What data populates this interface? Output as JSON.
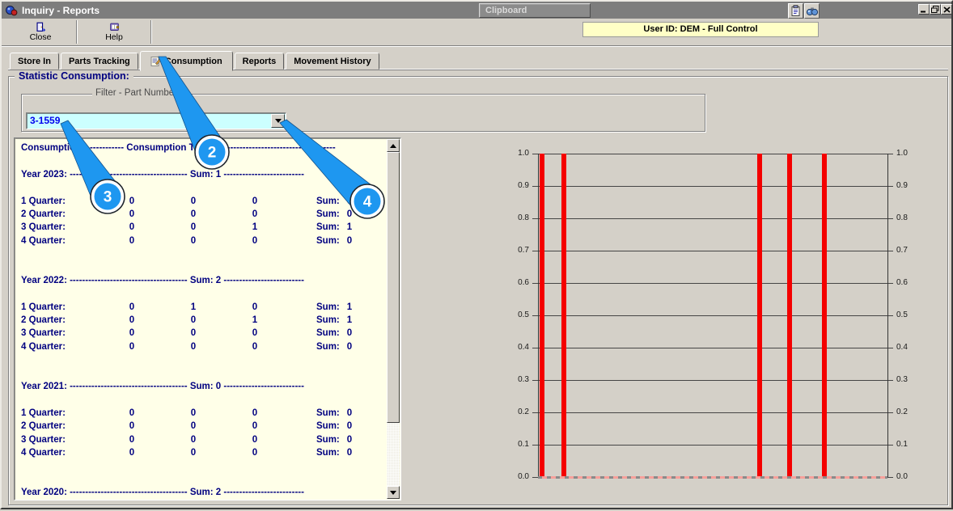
{
  "window": {
    "title": "Inquiry - Reports",
    "clipboard_caption": "Clipboard",
    "user_badge": "User ID: DEM - Full Control"
  },
  "toolbar": {
    "close": "Close",
    "help": "Help"
  },
  "tabs": {
    "items": [
      {
        "label": "Store In",
        "active": false
      },
      {
        "label": "Parts Tracking",
        "active": false
      },
      {
        "label": "Consumption",
        "active": true
      },
      {
        "label": "Reports",
        "active": false
      },
      {
        "label": "Movement History",
        "active": false
      }
    ]
  },
  "group": {
    "title": "Statistic Consumption:"
  },
  "filter": {
    "label": "Filter - Part Number:",
    "value": "3-1559"
  },
  "report": {
    "rows": [
      {
        "type": "text",
        "text": "Consumption: ------------ Consumption Total: 6 ------------------------------------"
      },
      {
        "type": "blank"
      },
      {
        "type": "text",
        "text": "Year 2023: -------------------------------------- Sum: 1 --------------------------"
      },
      {
        "type": "blank"
      },
      {
        "type": "q",
        "label": "1 Quarter:",
        "v1": "0",
        "v2": "0",
        "v3": "0",
        "sl": "Sum:",
        "sum": "0"
      },
      {
        "type": "q",
        "label": "2 Quarter:",
        "v1": "0",
        "v2": "0",
        "v3": "0",
        "sl": "Sum:",
        "sum": "0"
      },
      {
        "type": "q",
        "label": "3 Quarter:",
        "v1": "0",
        "v2": "0",
        "v3": "1",
        "sl": "Sum:",
        "sum": "1"
      },
      {
        "type": "q",
        "label": "4 Quarter:",
        "v1": "0",
        "v2": "0",
        "v3": "0",
        "sl": "Sum:",
        "sum": "0"
      },
      {
        "type": "blank"
      },
      {
        "type": "blank"
      },
      {
        "type": "text",
        "text": "Year 2022: -------------------------------------- Sum: 2 --------------------------"
      },
      {
        "type": "blank"
      },
      {
        "type": "q",
        "label": "1 Quarter:",
        "v1": "0",
        "v2": "1",
        "v3": "0",
        "sl": "Sum:",
        "sum": "1"
      },
      {
        "type": "q",
        "label": "2 Quarter:",
        "v1": "0",
        "v2": "0",
        "v3": "1",
        "sl": "Sum:",
        "sum": "1"
      },
      {
        "type": "q",
        "label": "3 Quarter:",
        "v1": "0",
        "v2": "0",
        "v3": "0",
        "sl": "Sum:",
        "sum": "0"
      },
      {
        "type": "q",
        "label": "4 Quarter:",
        "v1": "0",
        "v2": "0",
        "v3": "0",
        "sl": "Sum:",
        "sum": "0"
      },
      {
        "type": "blank"
      },
      {
        "type": "blank"
      },
      {
        "type": "text",
        "text": "Year 2021: -------------------------------------- Sum: 0 --------------------------"
      },
      {
        "type": "blank"
      },
      {
        "type": "q",
        "label": "1 Quarter:",
        "v1": "0",
        "v2": "0",
        "v3": "0",
        "sl": "Sum:",
        "sum": "0"
      },
      {
        "type": "q",
        "label": "2 Quarter:",
        "v1": "0",
        "v2": "0",
        "v3": "0",
        "sl": "Sum:",
        "sum": "0"
      },
      {
        "type": "q",
        "label": "3 Quarter:",
        "v1": "0",
        "v2": "0",
        "v3": "0",
        "sl": "Sum:",
        "sum": "0"
      },
      {
        "type": "q",
        "label": "4 Quarter:",
        "v1": "0",
        "v2": "0",
        "v3": "0",
        "sl": "Sum:",
        "sum": "0"
      },
      {
        "type": "blank"
      },
      {
        "type": "blank"
      },
      {
        "type": "text",
        "text": "Year 2020: -------------------------------------- Sum: 2 --------------------------"
      }
    ]
  },
  "callouts": [
    {
      "number": "2",
      "target": "consumption-tab"
    },
    {
      "number": "3",
      "target": "filter-part-number-value"
    },
    {
      "number": "4",
      "target": "filter-part-number-dropdown"
    }
  ],
  "chart_data": {
    "type": "bar",
    "title": "",
    "xlabel": "",
    "ylabel": "",
    "ylim": [
      0,
      1
    ],
    "yticks": [
      0,
      0.1,
      0.2,
      0.3,
      0.4,
      0.5,
      0.6,
      0.7,
      0.8,
      0.9,
      1.0
    ],
    "ytick_labels_both_sides": true,
    "grid": true,
    "bar_color": "#f40000",
    "bars": [
      {
        "x_frac": 0.012,
        "value": 1.0
      },
      {
        "x_frac": 0.074,
        "value": 1.0
      },
      {
        "x_frac": 0.634,
        "value": 1.0
      },
      {
        "x_frac": 0.72,
        "value": 1.0
      },
      {
        "x_frac": 0.82,
        "value": 1.0
      }
    ]
  }
}
